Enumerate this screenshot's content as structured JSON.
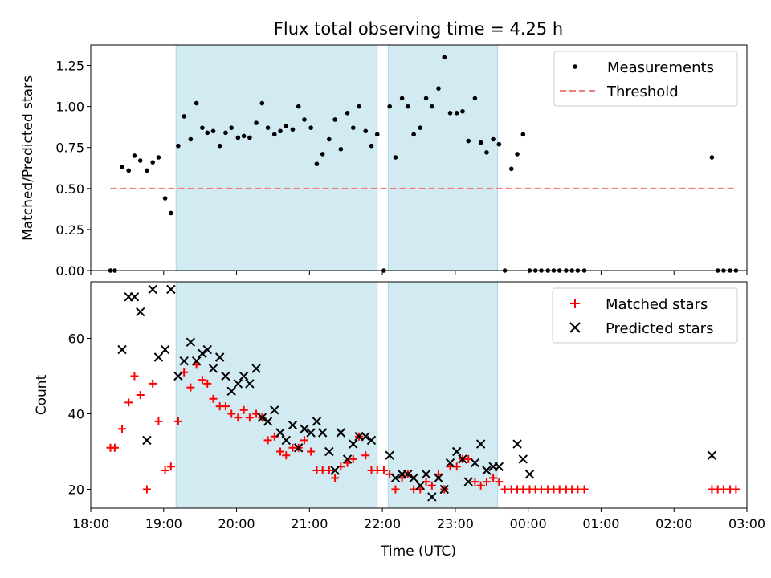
{
  "figure": {
    "title": "Flux total observing time = 4.25 h"
  },
  "colors": {
    "band": "#add8e6",
    "measurement": "#000000",
    "threshold": "#f08080",
    "matched": "#ff0000",
    "predicted": "#000000"
  },
  "chart_data": [
    {
      "type": "scatter",
      "title": "Flux total observing time = 4.25 h",
      "xlabel": "",
      "ylabel": "Matched/Predicted stars",
      "x_unit": "hours since 18:00 UTC",
      "xlim": [
        18.0,
        27.0
      ],
      "ylim": [
        0.0,
        1.375
      ],
      "yticks": [
        0.0,
        0.25,
        0.5,
        0.75,
        1.0,
        1.25
      ],
      "ytick_labels": [
        "0.00",
        "0.25",
        "0.50",
        "0.75",
        "1.00",
        "1.25"
      ],
      "legend_position": "upper-right",
      "shaded_intervals": [
        [
          19.17,
          21.93
        ],
        [
          22.08,
          23.58
        ]
      ],
      "series": [
        {
          "name": "Measurements",
          "kind": "points",
          "x": [
            18.27,
            18.33,
            18.43,
            18.52,
            18.6,
            18.68,
            18.77,
            18.85,
            18.93,
            19.02,
            19.1,
            19.2,
            19.28,
            19.37,
            19.45,
            19.53,
            19.6,
            19.68,
            19.77,
            19.85,
            19.93,
            20.02,
            20.1,
            20.18,
            20.27,
            20.35,
            20.43,
            20.52,
            20.6,
            20.68,
            20.77,
            20.85,
            20.93,
            21.02,
            21.1,
            21.18,
            21.27,
            21.35,
            21.43,
            21.52,
            21.6,
            21.68,
            21.77,
            21.85,
            21.93,
            22.02,
            22.1,
            22.18,
            22.27,
            22.35,
            22.43,
            22.52,
            22.6,
            22.68,
            22.77,
            22.85,
            22.93,
            23.02,
            23.1,
            23.18,
            23.27,
            23.35,
            23.43,
            23.52,
            23.6,
            23.68,
            23.77,
            23.85,
            23.93,
            24.02,
            24.1,
            24.18,
            24.27,
            24.35,
            24.43,
            24.52,
            24.6,
            24.68,
            24.77,
            26.52,
            26.6,
            26.68,
            26.77,
            26.85
          ],
          "y": [
            0.0,
            0.0,
            0.63,
            0.61,
            0.7,
            0.67,
            0.61,
            0.66,
            0.69,
            0.44,
            0.35,
            0.76,
            0.94,
            0.8,
            1.02,
            0.87,
            0.84,
            0.85,
            0.76,
            0.84,
            0.87,
            0.81,
            0.82,
            0.81,
            0.9,
            1.02,
            0.87,
            0.83,
            0.85,
            0.88,
            0.86,
            1.0,
            0.92,
            0.87,
            0.65,
            0.71,
            0.8,
            0.92,
            0.74,
            0.96,
            0.87,
            1.0,
            0.85,
            0.76,
            0.83,
            0.0,
            1.0,
            0.69,
            1.05,
            1.0,
            0.83,
            0.87,
            1.05,
            1.0,
            1.11,
            1.3,
            0.96,
            0.96,
            0.97,
            0.79,
            1.05,
            0.78,
            0.72,
            0.8,
            0.77,
            0.0,
            0.62,
            0.71,
            0.83,
            0.0,
            0.0,
            0.0,
            0.0,
            0.0,
            0.0,
            0.0,
            0.0,
            0.0,
            0.0,
            0.69,
            0.0,
            0.0,
            0.0,
            0.0
          ]
        },
        {
          "name": "Threshold",
          "kind": "dashed-line",
          "x": [
            18.27,
            26.85
          ],
          "y": [
            0.5,
            0.5
          ]
        }
      ]
    },
    {
      "type": "scatter",
      "title": "",
      "xlabel": "Time (UTC)",
      "ylabel": "Count",
      "x_unit": "hours since 18:00 UTC",
      "xlim": [
        18.0,
        27.0
      ],
      "ylim": [
        15,
        75
      ],
      "yticks": [
        20,
        40,
        60
      ],
      "ytick_labels": [
        "20",
        "40",
        "60"
      ],
      "xticks": [
        18,
        19,
        20,
        21,
        22,
        23,
        24,
        25,
        26,
        27
      ],
      "xtick_labels": [
        "18:00",
        "19:00",
        "20:00",
        "21:00",
        "22:00",
        "23:00",
        "00:00",
        "01:00",
        "02:00",
        "03:00"
      ],
      "legend_position": "upper-right",
      "shaded_intervals": [
        [
          19.17,
          21.93
        ],
        [
          22.08,
          23.58
        ]
      ],
      "series": [
        {
          "name": "Matched stars",
          "marker": "plus",
          "x": [
            18.27,
            18.33,
            18.43,
            18.52,
            18.6,
            18.68,
            18.77,
            18.85,
            18.93,
            19.02,
            19.1,
            19.2,
            19.28,
            19.37,
            19.45,
            19.53,
            19.6,
            19.68,
            19.77,
            19.85,
            19.93,
            20.02,
            20.1,
            20.18,
            20.27,
            20.35,
            20.43,
            20.52,
            20.6,
            20.68,
            20.77,
            20.85,
            20.93,
            21.02,
            21.1,
            21.18,
            21.27,
            21.35,
            21.43,
            21.52,
            21.6,
            21.68,
            21.77,
            21.85,
            21.93,
            22.02,
            22.1,
            22.18,
            22.27,
            22.35,
            22.43,
            22.52,
            22.6,
            22.68,
            22.77,
            22.85,
            22.93,
            23.02,
            23.1,
            23.18,
            23.27,
            23.35,
            23.43,
            23.52,
            23.6,
            23.68,
            23.77,
            23.85,
            23.93,
            24.02,
            24.1,
            24.18,
            24.27,
            24.35,
            24.43,
            24.52,
            24.6,
            24.68,
            24.77,
            26.52,
            26.6,
            26.68,
            26.77,
            26.85
          ],
          "y": [
            31,
            31,
            36,
            43,
            50,
            45,
            20,
            48,
            38,
            25,
            26,
            38,
            51,
            47,
            53,
            49,
            48,
            44,
            42,
            42,
            40,
            39,
            41,
            39,
            40,
            39,
            33,
            34,
            30,
            29,
            31,
            31,
            33,
            30,
            25,
            25,
            25,
            23,
            26,
            27,
            28,
            34,
            29,
            25,
            25,
            25,
            24,
            20,
            23,
            24,
            20,
            20,
            22,
            21,
            24,
            20,
            26,
            26,
            28,
            28,
            22,
            21,
            22,
            23,
            22,
            20,
            20,
            20,
            20,
            20,
            20,
            20,
            20,
            20,
            20,
            20,
            20,
            20,
            20,
            20,
            20,
            20,
            20,
            20
          ]
        },
        {
          "name": "Predicted stars",
          "marker": "x",
          "x": [
            18.43,
            18.52,
            18.6,
            18.68,
            18.77,
            18.85,
            18.93,
            19.02,
            19.1,
            19.2,
            19.28,
            19.37,
            19.45,
            19.53,
            19.6,
            19.68,
            19.77,
            19.85,
            19.93,
            20.02,
            20.1,
            20.18,
            20.27,
            20.35,
            20.43,
            20.52,
            20.6,
            20.68,
            20.77,
            20.85,
            20.93,
            21.02,
            21.1,
            21.18,
            21.27,
            21.35,
            21.43,
            21.52,
            21.6,
            21.68,
            21.77,
            21.85,
            22.1,
            22.18,
            22.27,
            22.35,
            22.43,
            22.52,
            22.6,
            22.68,
            22.77,
            22.85,
            22.93,
            23.02,
            23.1,
            23.18,
            23.27,
            23.35,
            23.43,
            23.52,
            23.6,
            23.85,
            23.93,
            24.02,
            26.52
          ],
          "y": [
            57,
            71,
            71,
            67,
            33,
            73,
            55,
            57,
            73,
            50,
            54,
            59,
            54,
            56,
            57,
            52,
            55,
            50,
            46,
            48,
            50,
            48,
            52,
            39,
            38,
            41,
            35,
            33,
            37,
            31,
            36,
            35,
            38,
            35,
            30,
            25,
            35,
            28,
            32,
            34,
            34,
            33,
            29,
            23,
            24,
            24,
            23,
            21,
            24,
            18,
            23,
            20,
            27,
            30,
            28,
            22,
            27,
            32,
            25,
            26,
            26,
            32,
            28,
            24,
            29
          ]
        }
      ]
    }
  ]
}
